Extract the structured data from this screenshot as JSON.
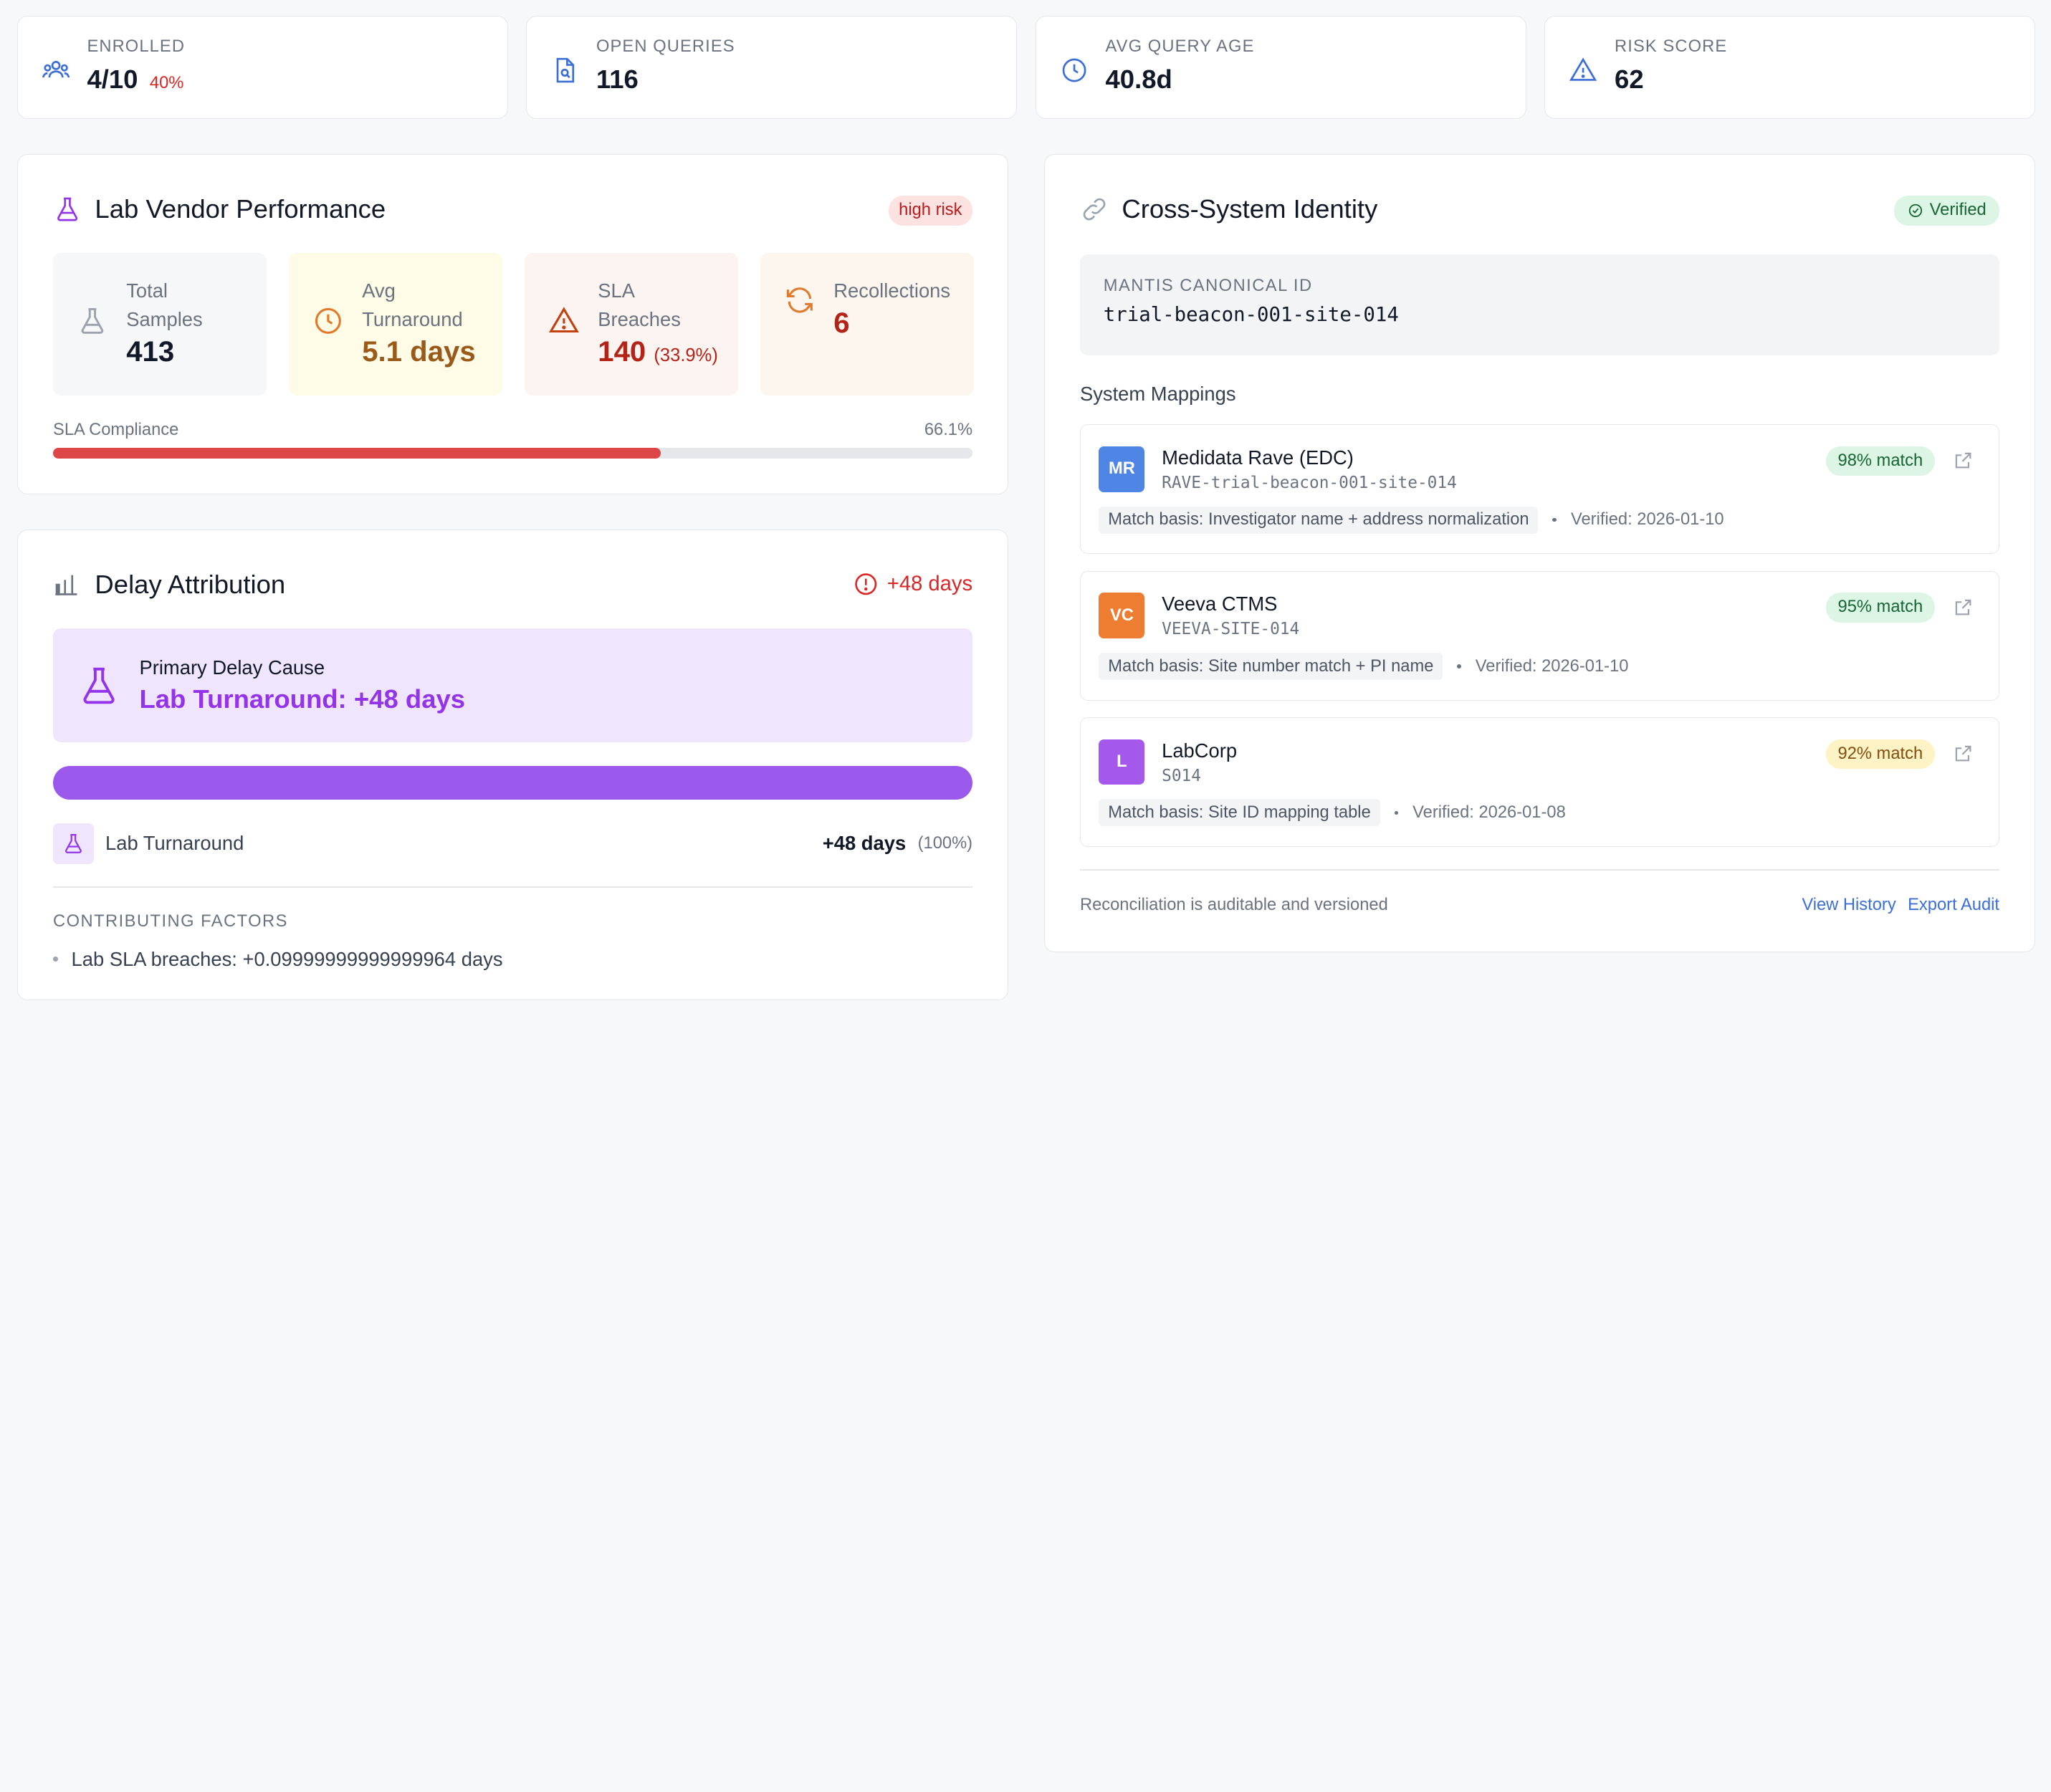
{
  "stats": [
    {
      "label": "ENROLLED",
      "value": "4/10",
      "sub": "40%",
      "icon": "users-icon"
    },
    {
      "label": "OPEN QUERIES",
      "value": "116",
      "sub": "",
      "icon": "file-search-icon"
    },
    {
      "label": "AVG QUERY AGE",
      "value": "40.8d",
      "sub": "",
      "icon": "clock-icon"
    },
    {
      "label": "RISK SCORE",
      "value": "62",
      "sub": "",
      "icon": "warning-icon"
    }
  ],
  "lab_vendor": {
    "title": "Lab Vendor Performance",
    "risk_badge": "high risk",
    "metrics": {
      "total": {
        "label": "Total Samples",
        "value": "413"
      },
      "turnaround": {
        "label": "Avg Turnaround",
        "value": "5.1 days"
      },
      "breaches": {
        "label": "SLA Breaches",
        "value": "140",
        "pct": "(33.9%)"
      },
      "recollections": {
        "label": "Recollections",
        "value": "6"
      }
    },
    "sla_label": "SLA Compliance",
    "sla_value": "66.1%",
    "sla_fraction": 0.661
  },
  "delay": {
    "title": "Delay Attribution",
    "total": "+48 days",
    "primary_label": "Primary Delay Cause",
    "primary_value": "Lab Turnaround: +48 days",
    "row_name": "Lab Turnaround",
    "row_value": "+48 days",
    "row_pct": "(100%)",
    "factors_heading": "CONTRIBUTING FACTORS",
    "factors": [
      "Lab SLA breaches: +0.09999999999999964 days"
    ]
  },
  "identity": {
    "title": "Cross-System Identity",
    "verified": "Verified",
    "canonical_label": "MANTIS CANONICAL ID",
    "canonical_value": "trial-beacon-001-site-014",
    "mappings_heading": "System Mappings",
    "mappings": [
      {
        "initials": "MR",
        "name": "Medidata Rave (EDC)",
        "id": "RAVE-trial-beacon-001-site-014",
        "match": "98% match",
        "basis": "Match basis: Investigator name + address normalization",
        "verified": "Verified: 2026-01-10",
        "color": "#4f86e6",
        "match_bg": "#ddf5e5",
        "match_fg": "#166534"
      },
      {
        "initials": "VC",
        "name": "Veeva CTMS",
        "id": "VEEVA-SITE-014",
        "match": "95% match",
        "basis": "Match basis: Site number match + PI name",
        "verified": "Verified: 2026-01-10",
        "color": "#ed7d31",
        "match_bg": "#ddf5e5",
        "match_fg": "#166534"
      },
      {
        "initials": "L",
        "name": "LabCorp",
        "id": "S014",
        "match": "92% match",
        "basis": "Match basis: Site ID mapping table",
        "verified": "Verified: 2026-01-08",
        "color": "#a559ec",
        "match_bg": "#fdf3c4",
        "match_fg": "#854d0e"
      }
    ],
    "footer_note": "Reconciliation is auditable and versioned",
    "view_history": "View History",
    "export_audit": "Export Audit"
  }
}
